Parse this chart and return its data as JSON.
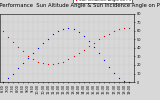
{
  "title": "Solar PV/Inverter Performance  Sun Altitude Angle & Sun Incidence Angle on PV Panels",
  "series": [
    {
      "label": "Sun Altitude Angle",
      "color": "#0000dd",
      "x": [
        6.5,
        7.0,
        7.5,
        8.0,
        8.5,
        9.0,
        9.5,
        10.0,
        10.5,
        11.0,
        11.5,
        12.0,
        12.5,
        13.0,
        13.5,
        14.0,
        14.5,
        15.0,
        15.5,
        16.0,
        16.5,
        17.0,
        17.5,
        18.0,
        18.5,
        19.0
      ],
      "y": [
        0,
        5,
        10,
        16,
        22,
        28,
        34,
        40,
        46,
        51,
        56,
        60,
        62,
        63,
        62,
        59,
        54,
        48,
        41,
        34,
        26,
        18,
        11,
        5,
        1,
        0
      ]
    },
    {
      "label": "Sun Incidence Angle on PV",
      "color": "#dd0000",
      "x": [
        6.5,
        7.0,
        7.5,
        8.0,
        8.5,
        9.0,
        9.5,
        10.0,
        10.5,
        11.0,
        11.5,
        12.0,
        12.5,
        13.0,
        13.5,
        14.0,
        14.5,
        15.0,
        15.5,
        16.0,
        16.5,
        17.0,
        17.5,
        18.0,
        18.5,
        19.0
      ],
      "y": [
        60,
        53,
        47,
        41,
        36,
        31,
        27,
        24,
        22,
        21,
        21,
        22,
        24,
        27,
        30,
        34,
        38,
        42,
        46,
        50,
        54,
        57,
        60,
        62,
        63,
        63
      ]
    }
  ],
  "xlim": [
    6.25,
    19.5
  ],
  "ylim": [
    0,
    80
  ],
  "xticks": [
    6.5,
    7.0,
    7.5,
    8.0,
    8.5,
    9.0,
    9.5,
    10.0,
    10.5,
    11.0,
    11.5,
    12.0,
    12.5,
    13.0,
    13.5,
    14.0,
    14.5,
    15.0,
    15.5,
    16.0,
    16.5,
    17.0,
    17.5,
    18.0,
    18.5,
    19.0
  ],
  "xtick_labels": [
    "6:30",
    "7:00",
    "7:30",
    "8:00",
    "8:30",
    "9:00",
    "9:30",
    "10:00",
    "10:30",
    "11:00",
    "11:30",
    "12:00",
    "12:30",
    "13:00",
    "13:30",
    "14:00",
    "14:30",
    "15:00",
    "15:30",
    "16:00",
    "16:30",
    "17:00",
    "17:30",
    "18:00",
    "18:30",
    "19:00"
  ],
  "yticks": [
    0,
    10,
    20,
    30,
    40,
    50,
    60,
    70,
    80
  ],
  "ytick_labels": [
    "0",
    "10",
    "20",
    "30",
    "40",
    "50",
    "60",
    "70",
    "80"
  ],
  "grid_color": "#bbbbbb",
  "bg_color": "#d8d8d8",
  "title_fontsize": 3.8,
  "tick_fontsize": 2.5,
  "legend_fontsize": 2.8,
  "marker_size": 1.8
}
